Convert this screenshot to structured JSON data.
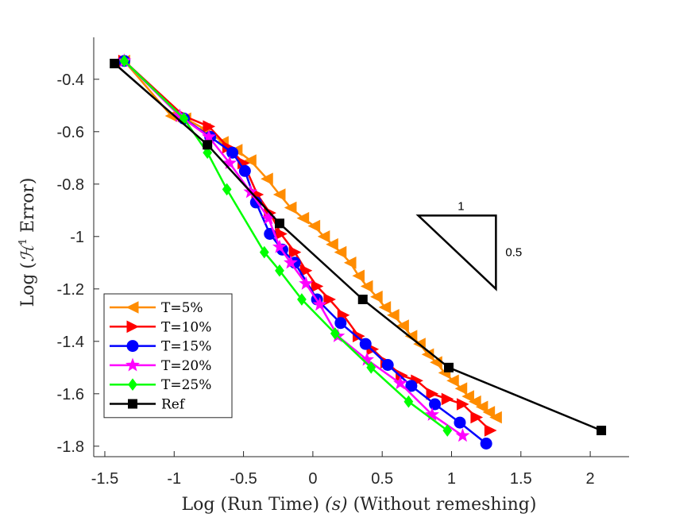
{
  "chart_data": {
    "type": "line",
    "title": "",
    "xlabel_parts": [
      "Log",
      "(Run Time)",
      "(s)",
      "(Without remeshing)"
    ],
    "ylabel_parts": [
      "Log",
      "(",
      "ℋ",
      "1",
      " Error)"
    ],
    "xlim": [
      -1.58,
      2.28
    ],
    "ylim": [
      -1.84,
      -0.24
    ],
    "xticks": [
      -1.5,
      -1,
      -0.5,
      0,
      0.5,
      1,
      1.5,
      2
    ],
    "xtick_labels": [
      "-1.5",
      "-1",
      "-0.5",
      "0",
      "0.5",
      "1",
      "1.5",
      "2"
    ],
    "yticks": [
      -0.4,
      -0.6,
      -0.8,
      -1.0,
      -1.2,
      -1.4,
      -1.6,
      -1.8
    ],
    "ytick_labels": [
      "-0.4",
      "-0.6",
      "-0.8",
      "-1",
      "-1.2",
      "-1.4",
      "-1.6",
      "-1.8"
    ],
    "grid": false,
    "legend_position": "bottom-left",
    "slope_triangle": {
      "run_label": "1",
      "rise_label": "0.5",
      "run": 0.56,
      "rise": 0.28,
      "anchor_x": 0.76,
      "anchor_y": -0.92
    },
    "series": [
      {
        "name": "T=5%",
        "color": "#FF8C00",
        "marker": "triangle-left",
        "x": [
          -1.36,
          -1.02,
          -0.92,
          -0.78,
          -0.65,
          -0.55,
          -0.45,
          -0.33,
          -0.24,
          -0.16,
          -0.07,
          0.01,
          0.08,
          0.14,
          0.2,
          0.27,
          0.33,
          0.39,
          0.46,
          0.52,
          0.58,
          0.65,
          0.71,
          0.77,
          0.83,
          0.89,
          0.95,
          1.01,
          1.07,
          1.12,
          1.17,
          1.22,
          1.27,
          1.32
        ],
        "y": [
          -0.33,
          -0.54,
          -0.55,
          -0.59,
          -0.64,
          -0.67,
          -0.71,
          -0.78,
          -0.84,
          -0.89,
          -0.93,
          -0.96,
          -1.0,
          -1.03,
          -1.06,
          -1.1,
          -1.15,
          -1.19,
          -1.23,
          -1.27,
          -1.3,
          -1.34,
          -1.38,
          -1.41,
          -1.45,
          -1.48,
          -1.52,
          -1.55,
          -1.58,
          -1.61,
          -1.63,
          -1.65,
          -1.67,
          -1.69
        ]
      },
      {
        "name": "T=10%",
        "color": "#FF0000",
        "marker": "triangle-right",
        "x": [
          -1.36,
          -0.93,
          -0.75,
          -0.61,
          -0.5,
          -0.4,
          -0.31,
          -0.23,
          -0.13,
          -0.05,
          0.03,
          0.12,
          0.22,
          0.33,
          0.43,
          0.53,
          0.64,
          0.75,
          0.86,
          0.97,
          1.08,
          1.18,
          1.28
        ],
        "y": [
          -0.33,
          -0.54,
          -0.58,
          -0.66,
          -0.72,
          -0.84,
          -0.91,
          -0.99,
          -1.06,
          -1.13,
          -1.19,
          -1.24,
          -1.3,
          -1.38,
          -1.43,
          -1.48,
          -1.53,
          -1.55,
          -1.6,
          -1.62,
          -1.64,
          -1.69,
          -1.74
        ]
      },
      {
        "name": "T=15%",
        "color": "#0000FF",
        "marker": "circle",
        "x": [
          -1.36,
          -0.93,
          -0.74,
          -0.58,
          -0.49,
          -0.41,
          -0.31,
          -0.22,
          -0.13,
          0.03,
          0.2,
          0.38,
          0.54,
          0.71,
          0.88,
          1.06,
          1.25
        ],
        "y": [
          -0.33,
          -0.55,
          -0.62,
          -0.68,
          -0.75,
          -0.87,
          -0.99,
          -1.05,
          -1.1,
          -1.24,
          -1.33,
          -1.41,
          -1.49,
          -1.57,
          -1.64,
          -1.71,
          -1.79
        ]
      },
      {
        "name": "T=20%",
        "color": "#FF00FF",
        "marker": "star",
        "x": [
          -1.36,
          -0.96,
          -0.75,
          -0.6,
          -0.45,
          -0.32,
          -0.24,
          -0.16,
          -0.05,
          0.05,
          0.18,
          0.39,
          0.63,
          0.86,
          1.08
        ],
        "y": [
          -0.33,
          -0.54,
          -0.62,
          -0.72,
          -0.83,
          -0.93,
          -1.04,
          -1.1,
          -1.18,
          -1.26,
          -1.38,
          -1.47,
          -1.56,
          -1.68,
          -1.76
        ]
      },
      {
        "name": "T=25%",
        "color": "#00FF00",
        "marker": "diamond",
        "x": [
          -1.36,
          -0.93,
          -0.76,
          -0.62,
          -0.35,
          -0.24,
          -0.08,
          0.16,
          0.42,
          0.69,
          0.97
        ],
        "y": [
          -0.33,
          -0.55,
          -0.68,
          -0.82,
          -1.06,
          -1.13,
          -1.24,
          -1.37,
          -1.5,
          -1.63,
          -1.74
        ]
      },
      {
        "name": "Ref",
        "color": "#000000",
        "marker": "square",
        "x": [
          -1.43,
          -0.76,
          -0.24,
          0.36,
          0.98,
          2.08
        ],
        "y": [
          -0.34,
          -0.65,
          -0.95,
          -1.24,
          -1.5,
          -1.74
        ]
      }
    ]
  }
}
